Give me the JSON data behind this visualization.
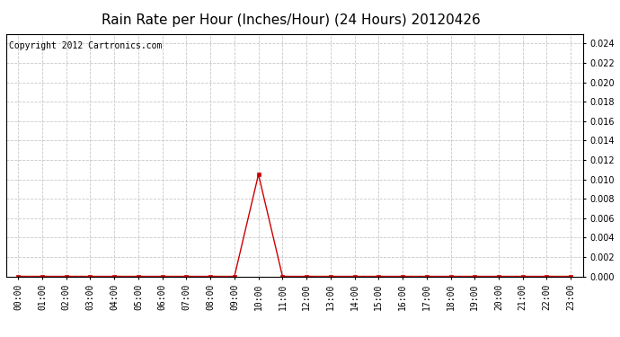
{
  "title": "Rain Rate per Hour (Inches/Hour) (24 Hours) 20120426",
  "copyright_text": "Copyright 2012 Cartronics.com",
  "line_color": "#cc0000",
  "marker_color": "#cc0000",
  "background_color": "#ffffff",
  "plot_bg_color": "#ffffff",
  "grid_color": "#c8c8c8",
  "ylim": [
    0,
    0.025
  ],
  "yticks": [
    0.0,
    0.002,
    0.004,
    0.006,
    0.008,
    0.01,
    0.012,
    0.014,
    0.016,
    0.018,
    0.02,
    0.022,
    0.024
  ],
  "hours": [
    0,
    1,
    2,
    3,
    4,
    5,
    6,
    7,
    8,
    9,
    10,
    11,
    12,
    13,
    14,
    15,
    16,
    17,
    18,
    19,
    20,
    21,
    22,
    23
  ],
  "values": [
    0,
    0,
    0,
    0,
    0,
    0,
    0,
    0,
    0,
    0,
    0.0105,
    0,
    0,
    0,
    0,
    0,
    0,
    0,
    0,
    0,
    0,
    0,
    0,
    0
  ],
  "xtick_labels": [
    "00:00",
    "01:00",
    "02:00",
    "03:00",
    "04:00",
    "05:00",
    "06:00",
    "07:00",
    "08:00",
    "09:00",
    "10:00",
    "11:00",
    "12:00",
    "13:00",
    "14:00",
    "15:00",
    "16:00",
    "17:00",
    "18:00",
    "19:00",
    "20:00",
    "21:00",
    "22:00",
    "23:00"
  ],
  "title_fontsize": 11,
  "copyright_fontsize": 7,
  "tick_fontsize": 7
}
